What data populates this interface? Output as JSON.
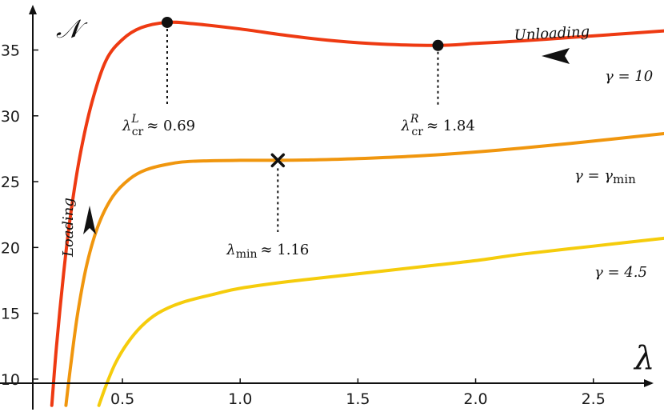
{
  "chart_data": {
    "type": "line",
    "xlabel": "λ",
    "ylabel": "𝒩",
    "xlim": [
      -0.02,
      2.8
    ],
    "ylim": [
      7.5,
      38.8
    ],
    "x_ticks": [
      0.5,
      1.0,
      1.5,
      2.0,
      2.5
    ],
    "x_tick_labels": [
      "0.5",
      "1.0",
      "1.5",
      "2.0",
      "2.5"
    ],
    "y_ticks": [
      10,
      15,
      20,
      25,
      30,
      35
    ],
    "y_tick_labels": [
      "10",
      "15",
      "20",
      "25",
      "30",
      "35"
    ],
    "grid": false,
    "series": [
      {
        "name": "γ = 10",
        "color": "#ee3a12",
        "points": [
          [
            0.2,
            8.0
          ],
          [
            0.22,
            12.5
          ],
          [
            0.25,
            18.0
          ],
          [
            0.28,
            22.5
          ],
          [
            0.32,
            27.0
          ],
          [
            0.37,
            31.0
          ],
          [
            0.43,
            34.2
          ],
          [
            0.5,
            35.8
          ],
          [
            0.58,
            36.7
          ],
          [
            0.69,
            37.1
          ],
          [
            0.8,
            37.0
          ],
          [
            1.0,
            36.6
          ],
          [
            1.2,
            36.1
          ],
          [
            1.4,
            35.7
          ],
          [
            1.6,
            35.45
          ],
          [
            1.84,
            35.35
          ],
          [
            2.0,
            35.5
          ],
          [
            2.2,
            35.7
          ],
          [
            2.4,
            35.95
          ],
          [
            2.6,
            36.2
          ],
          [
            2.8,
            36.45
          ]
        ]
      },
      {
        "name": "γ = γ_min",
        "color": "#f0960e",
        "points": [
          [
            0.26,
            8.0
          ],
          [
            0.28,
            11.0
          ],
          [
            0.31,
            15.0
          ],
          [
            0.35,
            18.8
          ],
          [
            0.4,
            21.8
          ],
          [
            0.46,
            23.9
          ],
          [
            0.53,
            25.2
          ],
          [
            0.6,
            25.9
          ],
          [
            0.7,
            26.35
          ],
          [
            0.8,
            26.55
          ],
          [
            1.0,
            26.62
          ],
          [
            1.16,
            26.62
          ],
          [
            1.3,
            26.65
          ],
          [
            1.5,
            26.75
          ],
          [
            1.8,
            27.0
          ],
          [
            2.1,
            27.4
          ],
          [
            2.4,
            27.9
          ],
          [
            2.8,
            28.65
          ]
        ]
      },
      {
        "name": "γ = 4.5",
        "color": "#f5cc0c",
        "points": [
          [
            0.4,
            8.0
          ],
          [
            0.43,
            9.5
          ],
          [
            0.47,
            11.2
          ],
          [
            0.52,
            12.7
          ],
          [
            0.58,
            14.0
          ],
          [
            0.65,
            15.0
          ],
          [
            0.75,
            15.8
          ],
          [
            0.9,
            16.5
          ],
          [
            1.0,
            16.9
          ],
          [
            1.2,
            17.4
          ],
          [
            1.5,
            18.0
          ],
          [
            1.8,
            18.6
          ],
          [
            2.0,
            19.0
          ],
          [
            2.2,
            19.5
          ],
          [
            2.5,
            20.1
          ],
          [
            2.8,
            20.7
          ]
        ]
      }
    ],
    "annotations": {
      "lambda_cr_L": {
        "x": 0.69,
        "y": 37.1,
        "base": "λ",
        "sub": "cr",
        "sup": "L",
        "value": "≈ 0.69"
      },
      "lambda_cr_R": {
        "x": 1.84,
        "y": 35.35,
        "base": "λ",
        "sub": "cr",
        "sup": "R",
        "value": "≈ 1.84"
      },
      "lambda_min": {
        "x": 1.16,
        "y": 26.62,
        "base": "λ",
        "sub": "min",
        "value": "≈ 1.16"
      }
    },
    "curve_labels": {
      "gamma10": "γ = 10",
      "gammamin_base": "γ = γ",
      "gammamin_sub": "min",
      "gamma45": "γ = 4.5"
    },
    "process_labels": {
      "loading": "Loading",
      "unloading": "Unloading"
    }
  }
}
